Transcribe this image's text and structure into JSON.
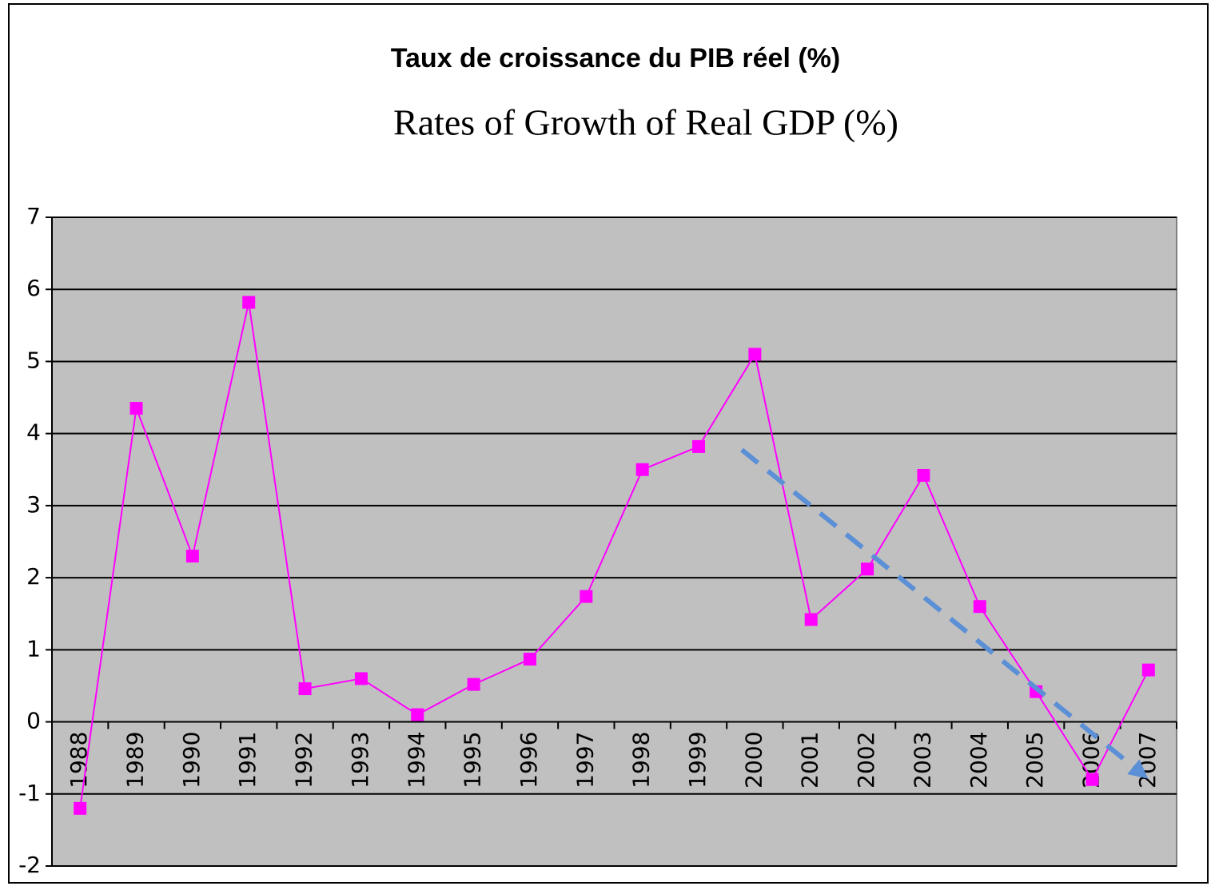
{
  "chart_data": {
    "type": "line",
    "title": "Taux de croissance du PIB réel (%)",
    "subtitle": "Rates of Growth of Real GDP (%)",
    "categories": [
      "1988",
      "1989",
      "1990",
      "1991",
      "1992",
      "1993",
      "1994",
      "1995",
      "1996",
      "1997",
      "1998",
      "1999",
      "2000",
      "2001",
      "2002",
      "2003",
      "2004",
      "2005",
      "2006",
      "2007"
    ],
    "values": [
      -1.2,
      4.35,
      2.3,
      5.82,
      0.46,
      0.6,
      0.1,
      0.52,
      0.87,
      1.74,
      3.5,
      3.82,
      5.1,
      1.42,
      2.12,
      3.42,
      1.6,
      0.42,
      -0.8,
      0.72
    ],
    "color": "#ff00ff",
    "ylim": [
      -2,
      7
    ],
    "yticks": [
      -2,
      -1,
      0,
      1,
      2,
      3,
      4,
      5,
      6,
      7
    ],
    "grid": true
  }
}
